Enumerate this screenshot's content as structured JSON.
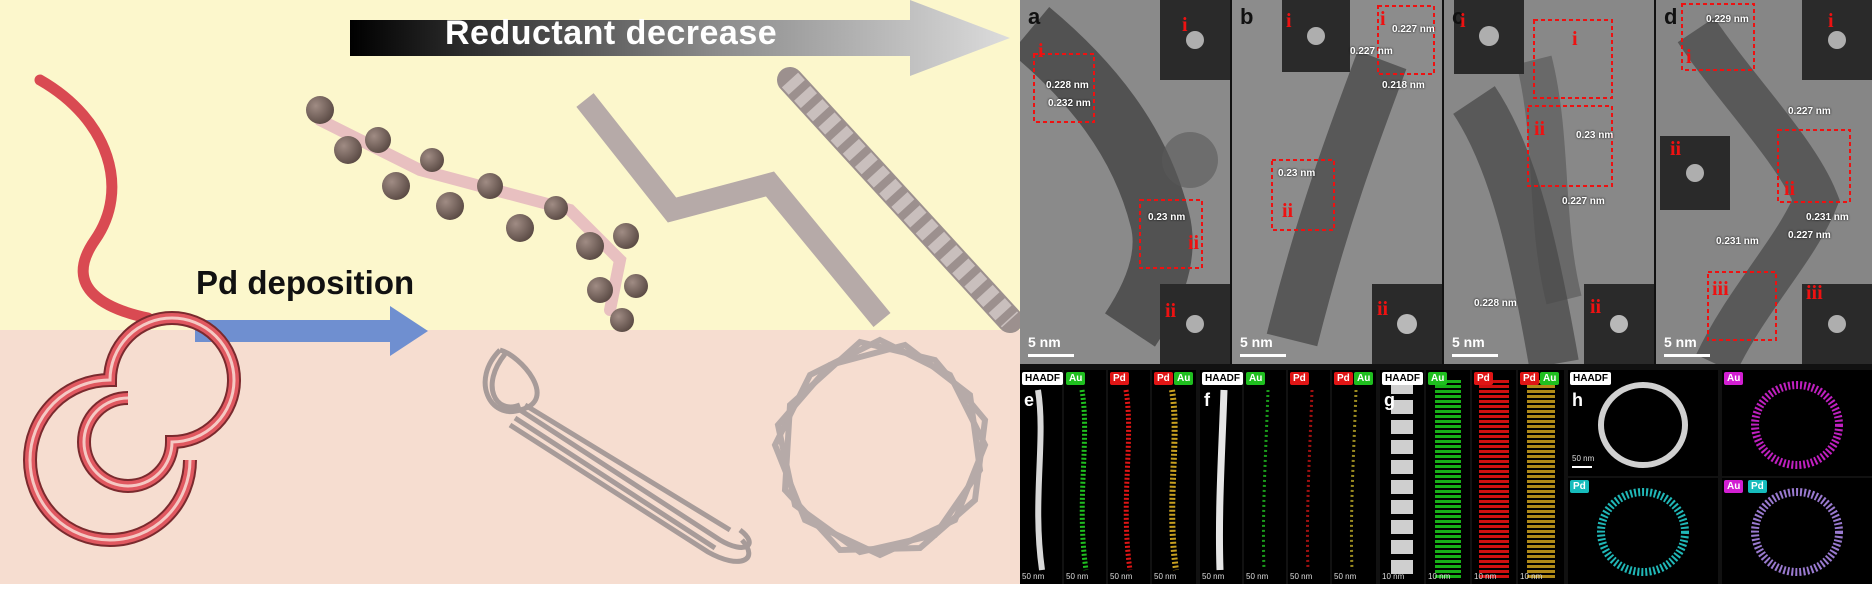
{
  "schematic": {
    "arrow_top_label": "Reductant decrease",
    "arrow_side_label": "Pd deposition",
    "colors": {
      "upper_bg": "#fcf7cc",
      "lower_bg": "#f6ddd0",
      "template": "#d94a52",
      "wire": "#b6aaa8",
      "particle": "#7d6a62",
      "side_arrow": "#6f8fd0"
    }
  },
  "tem_panels": [
    {
      "letter": "a",
      "scale": "5 nm",
      "regions": [
        "i",
        "ii"
      ],
      "fft_labels": [
        "i",
        "ii"
      ],
      "spacings": [
        "0.228 nm",
        "0.232 nm",
        "0.23 nm"
      ]
    },
    {
      "letter": "b",
      "scale": "5 nm",
      "regions": [
        "i",
        "ii"
      ],
      "fft_labels": [
        "i",
        "ii"
      ],
      "spacings": [
        "0.227 nm",
        "0.227 nm",
        "0.218 nm",
        "0.23 nm"
      ]
    },
    {
      "letter": "c",
      "scale": "5 nm",
      "regions": [
        "i",
        "ii"
      ],
      "fft_labels": [
        "i",
        "ii"
      ],
      "spacings": [
        "0.23 nm",
        "0.227 nm",
        "0.228 nm"
      ]
    },
    {
      "letter": "d",
      "scale": "5 nm",
      "regions": [
        "i",
        "ii",
        "iii"
      ],
      "fft_labels": [
        "i",
        "ii",
        "iii"
      ],
      "spacings": [
        "0.229 nm",
        "0.227 nm",
        "0.231 nm",
        "0.231 nm",
        "0.227 nm"
      ]
    }
  ],
  "map_panels": [
    {
      "letter": "e",
      "tags": [
        "HAADF",
        "Au",
        "Pd",
        "Pd",
        "Au"
      ],
      "scales": [
        "50 nm",
        "50 nm",
        "50 nm",
        "50 nm"
      ]
    },
    {
      "letter": "f",
      "tags": [
        "HAADF",
        "Au",
        "Pd",
        "Pd",
        "Au"
      ],
      "scales": [
        "50 nm",
        "50 nm",
        "50 nm",
        "50 nm"
      ]
    },
    {
      "letter": "g",
      "tags": [
        "HAADF",
        "Au",
        "Pd",
        "Pd",
        "Au"
      ],
      "scales": [
        "10 nm",
        "10 nm",
        "10 nm",
        "10 nm"
      ]
    },
    {
      "letter": "h",
      "tags": [
        "HAADF",
        "Au",
        "Pd",
        "Au",
        "Pd"
      ],
      "scales": [
        "50 nm"
      ]
    }
  ]
}
